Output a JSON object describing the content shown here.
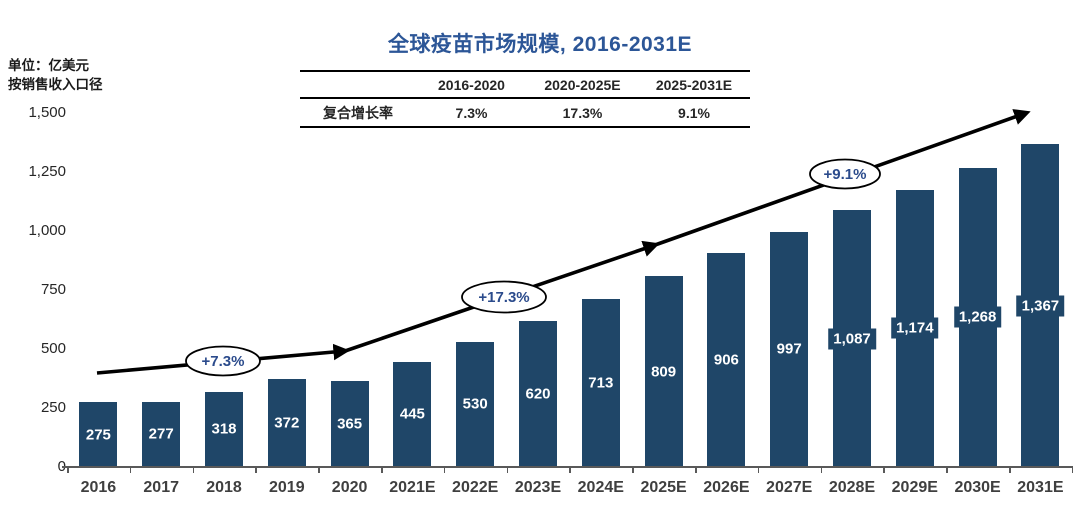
{
  "page": {
    "title": "全球疫苗市场规模, 2016-2031E",
    "unit_note": [
      "单位：亿美元",
      "按销售收入口径"
    ]
  },
  "cagr_table": {
    "row_label": "复合增长率",
    "columns": [
      "2016-2020",
      "2020-2025E",
      "2025-2031E"
    ],
    "values": [
      "7.3%",
      "17.3%",
      "9.1%"
    ]
  },
  "chart_data": {
    "type": "bar",
    "title": "全球疫苗市场规模, 2016-2031E",
    "unit": "亿美元",
    "categories": [
      "2016",
      "2017",
      "2018",
      "2019",
      "2020",
      "2021E",
      "2022E",
      "2023E",
      "2024E",
      "2025E",
      "2026E",
      "2027E",
      "2028E",
      "2029E",
      "2030E",
      "2031E"
    ],
    "values": [
      275,
      277,
      318,
      372,
      365,
      445,
      530,
      620,
      713,
      809,
      906,
      997,
      1087,
      1174,
      1268,
      1367
    ],
    "value_labels": [
      "275",
      "277",
      "318",
      "372",
      "365",
      "445",
      "530",
      "620",
      "713",
      "809",
      "906",
      "997",
      "1,087",
      "1,174",
      "1,268",
      "1,367"
    ],
    "ylim": [
      0,
      1500
    ],
    "ytick_values": [
      0,
      250,
      500,
      750,
      1000,
      1250,
      1500
    ],
    "ytick_labels": [
      "0",
      "250",
      "500",
      "750",
      "1,000",
      "1,250",
      "1,500"
    ],
    "grid": false,
    "legend": "none",
    "annotations": [
      {
        "label": "+7.3%"
      },
      {
        "label": "+17.3%"
      },
      {
        "label": "+9.1%"
      }
    ]
  },
  "colors": {
    "bar": "#1F4668",
    "title_text": "#2C5697",
    "annotation_text": "#2B4B8C",
    "axis": "#595959",
    "x_label": "#3F3F3F",
    "bar_label": "#FFFFFF",
    "table_line": "#000000",
    "arrow": "#000000"
  }
}
